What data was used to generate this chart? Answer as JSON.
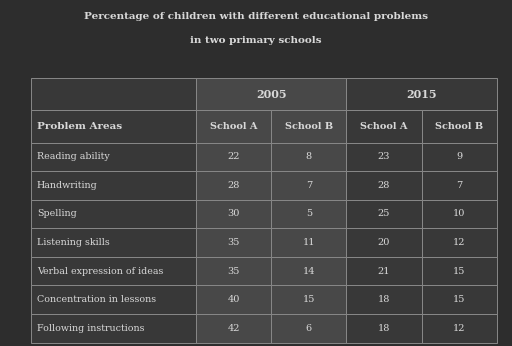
{
  "title_line1": "Percentage of children with different educational problems",
  "title_line2": "in two primary schools",
  "background_color": "#2d2d2d",
  "table_bg_dark": "#383838",
  "table_bg_medium": "#484848",
  "table_border_color": "#888888",
  "text_color": "#d8d8d8",
  "header_sub_cols": [
    "School A",
    "School B",
    "School A",
    "School B"
  ],
  "rows": [
    [
      "Reading ability",
      22,
      8,
      23,
      9
    ],
    [
      "Handwriting",
      28,
      7,
      28,
      7
    ],
    [
      "Spelling",
      30,
      5,
      25,
      10
    ],
    [
      "Listening skills",
      35,
      11,
      20,
      12
    ],
    [
      "Verbal expression of ideas",
      35,
      14,
      21,
      15
    ],
    [
      "Concentration in lessons",
      40,
      15,
      18,
      15
    ],
    [
      "Following instructions",
      42,
      6,
      18,
      12
    ]
  ]
}
